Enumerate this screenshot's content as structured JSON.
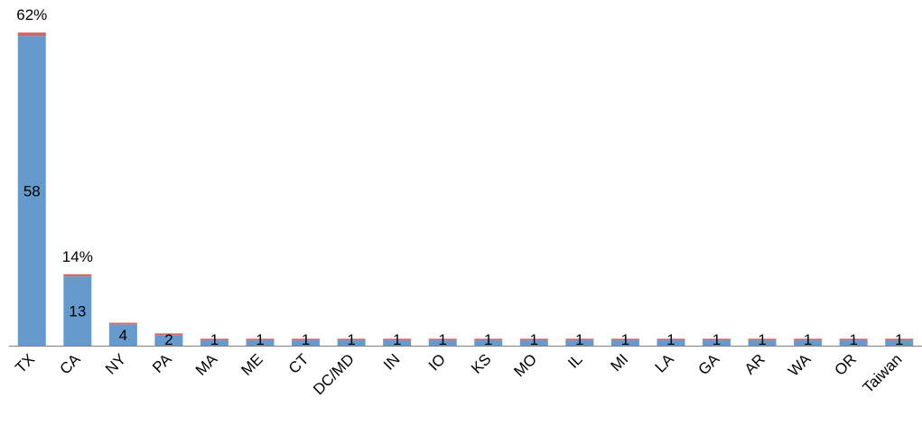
{
  "chart_data": {
    "type": "bar",
    "stacked": true,
    "categories": [
      "TX",
      "CA",
      "NY",
      "PA",
      "MA",
      "ME",
      "CT",
      "DC/MD",
      "IN",
      "IO",
      "KS",
      "MO",
      "IL",
      "MI",
      "LA",
      "GA",
      "AR",
      "WA",
      "OR",
      "Taiwan"
    ],
    "series": [
      {
        "color": "#6699cc",
        "values": [
          58,
          13,
          4,
          2,
          1,
          1,
          1,
          1,
          1,
          1,
          1,
          1,
          1,
          1,
          1,
          1,
          1,
          1,
          1,
          1
        ]
      },
      {
        "color": "#d06a66",
        "values": [
          0.7,
          0.4,
          0.3,
          0.3,
          0.3,
          0.3,
          0.3,
          0.3,
          0.3,
          0.3,
          0.3,
          0.3,
          0.3,
          0.3,
          0.3,
          0.3,
          0.3,
          0.3,
          0.3,
          0.3
        ]
      }
    ],
    "data_labels": [
      "58",
      "13",
      "4",
      "2",
      "1",
      "1",
      "1",
      "1",
      "1",
      "1",
      "1",
      "1",
      "1",
      "1",
      "1",
      "1",
      "1",
      "1",
      "1",
      "1"
    ],
    "percent_labels": [
      {
        "category": "TX",
        "text": "62%"
      },
      {
        "category": "CA",
        "text": "14%"
      }
    ],
    "ylim": [
      0,
      58.7
    ],
    "grid": false,
    "legend": "none",
    "axis_color": "#7f7f7f"
  }
}
